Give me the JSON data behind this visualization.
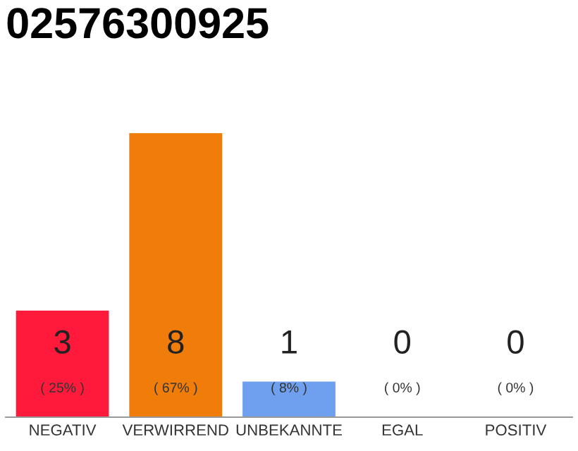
{
  "chart_data": {
    "type": "bar",
    "title": "02576300925",
    "categories": [
      "NEGATIV",
      "VERWIRREND",
      "UNBEKANNTE",
      "EGAL",
      "POSITIV"
    ],
    "values": [
      3,
      8,
      1,
      0,
      0
    ],
    "colors": [
      "#ff1a3c",
      "#f07d0a",
      "#6fa0f0",
      "#cccccc",
      "#cccccc"
    ],
    "value_labels": [
      "3\n( 25% )",
      "8\n( 67% )",
      "1\n( 8% )",
      "0\n( 0% )",
      "0\n( 0% )"
    ],
    "ylim": [
      0,
      8
    ],
    "tick_labels": "x",
    "grid": false,
    "legend": false
  }
}
